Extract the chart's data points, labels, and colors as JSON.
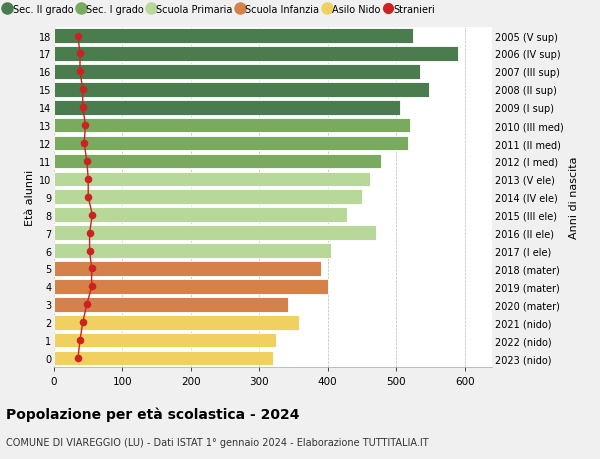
{
  "ages": [
    18,
    17,
    16,
    15,
    14,
    13,
    12,
    11,
    10,
    9,
    8,
    7,
    6,
    5,
    4,
    3,
    2,
    1,
    0
  ],
  "right_labels": [
    "2005 (V sup)",
    "2006 (IV sup)",
    "2007 (III sup)",
    "2008 (II sup)",
    "2009 (I sup)",
    "2010 (III med)",
    "2011 (II med)",
    "2012 (I med)",
    "2013 (V ele)",
    "2014 (IV ele)",
    "2015 (III ele)",
    "2016 (II ele)",
    "2017 (I ele)",
    "2018 (mater)",
    "2019 (mater)",
    "2020 (mater)",
    "2021 (nido)",
    "2022 (nido)",
    "2023 (nido)"
  ],
  "bar_values": [
    525,
    590,
    535,
    548,
    505,
    520,
    517,
    478,
    462,
    450,
    428,
    470,
    405,
    390,
    400,
    342,
    358,
    325,
    320
  ],
  "bar_colors": [
    "#4a7c4e",
    "#4a7c4e",
    "#4a7c4e",
    "#4a7c4e",
    "#4a7c4e",
    "#7aaa5e",
    "#7aaa5e",
    "#7aaa5e",
    "#b8d89a",
    "#b8d89a",
    "#b8d89a",
    "#b8d89a",
    "#b8d89a",
    "#d4814a",
    "#d4814a",
    "#d4814a",
    "#f0d060",
    "#f0d060",
    "#f0d060"
  ],
  "stranieri_values": [
    35,
    38,
    38,
    42,
    42,
    46,
    44,
    48,
    50,
    50,
    56,
    52,
    52,
    55,
    55,
    48,
    42,
    38,
    35
  ],
  "legend_labels": [
    "Sec. II grado",
    "Sec. I grado",
    "Scuola Primaria",
    "Scuola Infanzia",
    "Asilo Nido",
    "Stranieri"
  ],
  "legend_colors": [
    "#4a7c4e",
    "#7aaa5e",
    "#b8d89a",
    "#d4814a",
    "#f0d060",
    "#cc2222"
  ],
  "title": "Popolazione per età scolastica - 2024",
  "subtitle": "COMUNE DI VIAREGGIO (LU) - Dati ISTAT 1° gennaio 2024 - Elaborazione TUTTITALIA.IT",
  "ylabel_left": "Età alunni",
  "ylabel_right": "Anni di nascita",
  "xlim": [
    0,
    640
  ],
  "xticks": [
    0,
    100,
    200,
    300,
    400,
    500,
    600
  ],
  "bg_color": "#f0f0f0",
  "plot_bg_color": "#ffffff"
}
